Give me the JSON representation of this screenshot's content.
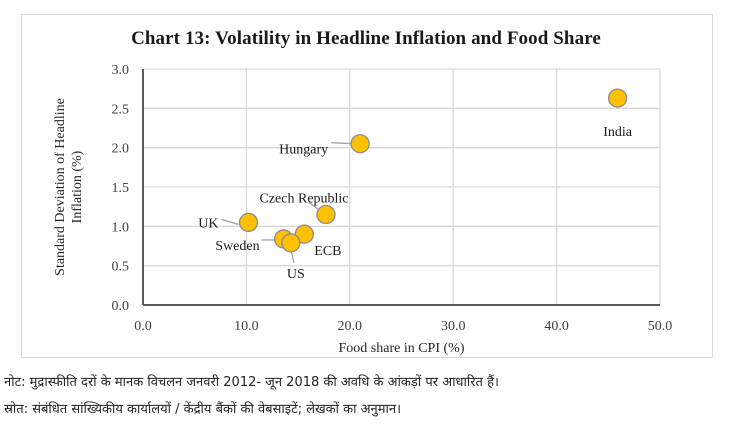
{
  "chart_data": {
    "type": "scatter",
    "title": "Chart 13: Volatility in Headline Inflation and Food Share",
    "xlabel": "Food share in CPI (%)",
    "ylabel_lines": [
      "Standard Deviation of Headline",
      "Inflation (%)"
    ],
    "xlim": [
      0,
      50
    ],
    "ylim": [
      0,
      3.0
    ],
    "x_ticks": [
      "0.0",
      "10.0",
      "20.0",
      "30.0",
      "40.0",
      "50.0"
    ],
    "x_tick_values": [
      0,
      10,
      20,
      30,
      40,
      50
    ],
    "y_ticks": [
      "0.0",
      "0.5",
      "1.0",
      "1.5",
      "2.0",
      "2.5",
      "3.0"
    ],
    "y_tick_values": [
      0,
      0.5,
      1.0,
      1.5,
      2.0,
      2.5,
      3.0
    ],
    "grid": true,
    "legend": "none",
    "marker_color": "#FFC000",
    "marker_edge_color": "#8c8c8c",
    "points": [
      {
        "label": "UK",
        "x": 10.2,
        "y": 1.05,
        "label_pos": "left"
      },
      {
        "label": "Sweden",
        "x": 13.6,
        "y": 0.84,
        "label_pos": "left"
      },
      {
        "label": "US",
        "x": 14.3,
        "y": 0.79,
        "label_pos": "below"
      },
      {
        "label": "ECB",
        "x": 15.6,
        "y": 0.9,
        "label_pos": "right-below"
      },
      {
        "label": "Czech Republic",
        "x": 17.7,
        "y": 1.15,
        "label_pos": "above-left"
      },
      {
        "label": "Hungary",
        "x": 21.0,
        "y": 2.05,
        "label_pos": "left"
      },
      {
        "label": "India",
        "x": 45.9,
        "y": 2.63,
        "label_pos": "below"
      }
    ]
  },
  "notes": {
    "note": "नोट: मुद्रास्फीति दरों के मानक विचलन जनवरी 2012- जून 2018 की अवधि के आंकड़ों पर आधारित हैं।",
    "source": "स्रोत: संबंधित सांख्यिकीय कार्यालयों / केंद्रीय बैंकों की वेबसाइटें; लेखकों का अनुमान।"
  }
}
